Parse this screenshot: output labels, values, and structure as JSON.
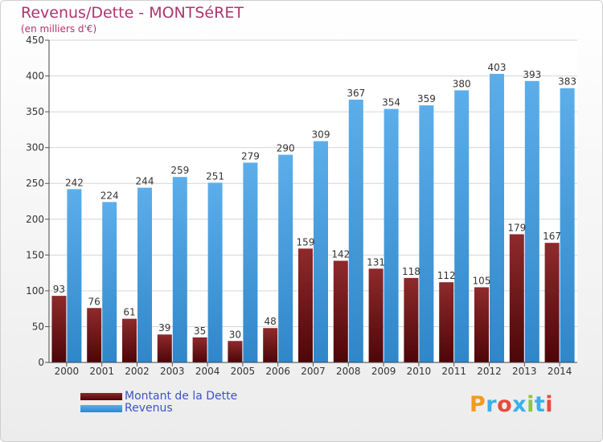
{
  "title": "Revenus/Dette - MONTSéRET",
  "subtitle": "(en milliers d'€)",
  "logo": {
    "text": "Proxiti",
    "colors": [
      "#f39a1f",
      "#3bb0e8",
      "#e54c3c",
      "#3bb0e8",
      "#8cc63f",
      "#3bb0e8",
      "#e54c3c"
    ]
  },
  "chart_data": {
    "type": "bar",
    "title": "Revenus/Dette - MONTSéRET",
    "subtitle": "(en milliers d'€)",
    "categories": [
      "2000",
      "2001",
      "2002",
      "2003",
      "2004",
      "2005",
      "2006",
      "2007",
      "2008",
      "2009",
      "2010",
      "2011",
      "2012",
      "2013",
      "2014"
    ],
    "series": [
      {
        "name": "Montant de la Dette",
        "color": "#7a1a1c",
        "values": [
          93,
          76,
          61,
          39,
          35,
          30,
          48,
          159,
          142,
          131,
          118,
          112,
          105,
          179,
          167
        ]
      },
      {
        "name": "Revenus",
        "color": "#4ea6e5",
        "values": [
          242,
          224,
          244,
          259,
          251,
          279,
          290,
          309,
          367,
          354,
          359,
          380,
          403,
          393,
          383
        ]
      }
    ],
    "ylim": [
      0,
      450
    ],
    "yticks": [
      0,
      50,
      100,
      150,
      200,
      250,
      300,
      350,
      400,
      450
    ],
    "grid": true,
    "legend": "bottom-left"
  },
  "legend": [
    {
      "label": "Montant de la Dette",
      "color": "#7a1a1c"
    },
    {
      "label": "Revenus",
      "color": "#4ea6e5"
    }
  ]
}
